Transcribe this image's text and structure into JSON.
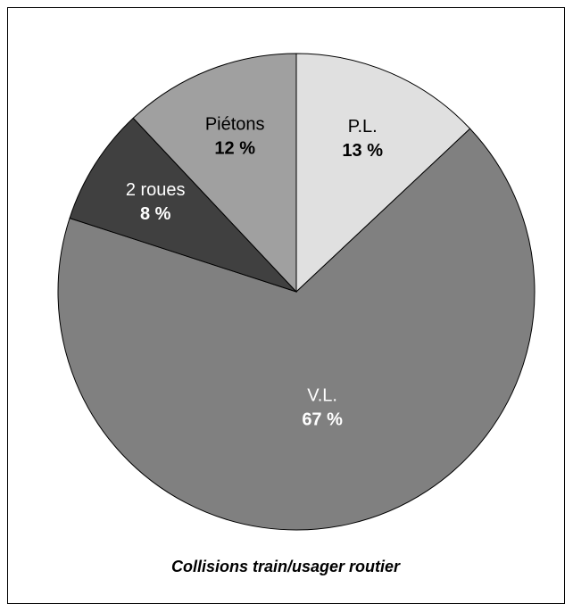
{
  "chart_data": {
    "type": "pie",
    "title": "Collisions train/usager routier",
    "categories": [
      "P.L.",
      "V.L.",
      "2 roues",
      "Piétons"
    ],
    "values": [
      13,
      67,
      8,
      12
    ],
    "value_labels": [
      "13 %",
      "67 %",
      "8 %",
      "12 %"
    ],
    "colors": [
      "#e0e0e0",
      "#808080",
      "#404040",
      "#a0a0a0"
    ]
  }
}
